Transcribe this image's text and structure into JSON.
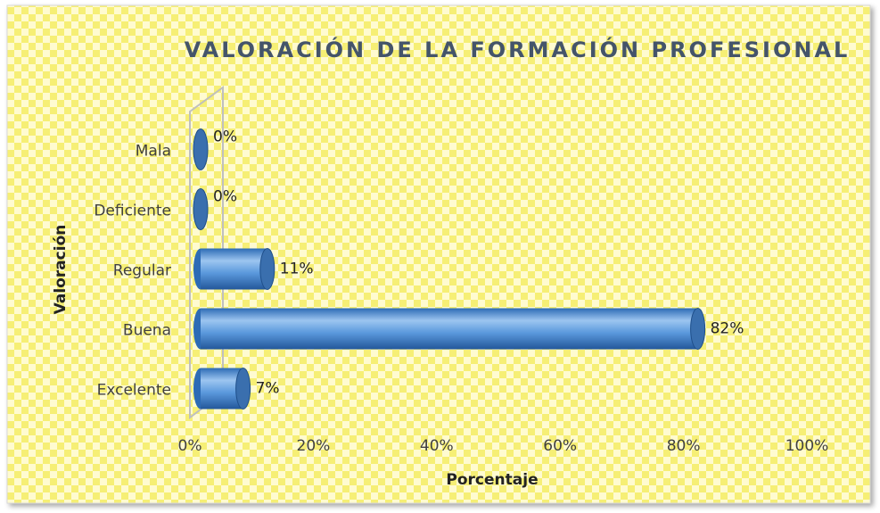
{
  "chart_data": {
    "type": "bar",
    "orientation": "horizontal",
    "title": "VALORACIÓN DE LA FORMACIÓN PROFESIONAL",
    "x_label": "Porcentaje",
    "y_label": "Valoración",
    "categories": [
      "Mala",
      "Deficiente",
      "Regular",
      "Buena",
      "Excelente"
    ],
    "values": [
      0,
      0,
      11,
      82,
      7
    ],
    "value_labels": [
      "0%",
      "0%",
      "11%",
      "82%",
      "7%"
    ],
    "color": "#4f8fd6",
    "xlim": [
      0,
      100
    ],
    "xticks": [
      {
        "value": 0,
        "label": "0%"
      },
      {
        "value": 20,
        "label": "20%"
      },
      {
        "value": 40,
        "label": "40%"
      },
      {
        "value": 60,
        "label": "60%"
      },
      {
        "value": 80,
        "label": "80%"
      },
      {
        "value": 100,
        "label": "100%"
      }
    ]
  }
}
